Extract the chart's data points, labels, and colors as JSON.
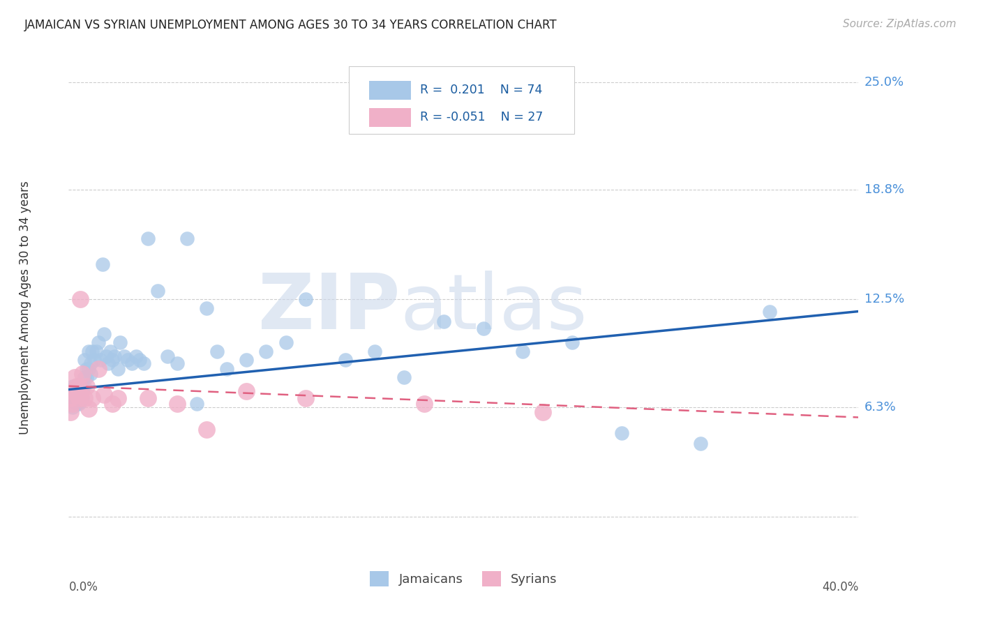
{
  "title": "JAMAICAN VS SYRIAN UNEMPLOYMENT AMONG AGES 30 TO 34 YEARS CORRELATION CHART",
  "source": "Source: ZipAtlas.com",
  "ylabel": "Unemployment Among Ages 30 to 34 years",
  "xlim": [
    0.0,
    0.4
  ],
  "ylim": [
    -0.025,
    0.265
  ],
  "yticks": [
    0.0,
    0.063,
    0.125,
    0.188,
    0.25
  ],
  "ytick_labels": [
    "",
    "6.3%",
    "12.5%",
    "18.8%",
    "25.0%"
  ],
  "background_color": "#ffffff",
  "grid_color": "#cccccc",
  "jamaican_color": "#a8c8e8",
  "syrian_color": "#f0b0c8",
  "jamaican_line_color": "#2060b0",
  "syrian_line_color": "#e06080",
  "watermark_zip": "ZIP",
  "watermark_atlas": "atlas",
  "jamaican_x": [
    0.001,
    0.001,
    0.002,
    0.002,
    0.002,
    0.003,
    0.003,
    0.003,
    0.004,
    0.004,
    0.004,
    0.004,
    0.005,
    0.005,
    0.005,
    0.005,
    0.006,
    0.006,
    0.006,
    0.007,
    0.007,
    0.007,
    0.008,
    0.008,
    0.008,
    0.009,
    0.009,
    0.01,
    0.01,
    0.011,
    0.011,
    0.012,
    0.013,
    0.014,
    0.015,
    0.016,
    0.017,
    0.018,
    0.019,
    0.02,
    0.021,
    0.022,
    0.023,
    0.025,
    0.026,
    0.028,
    0.03,
    0.032,
    0.034,
    0.036,
    0.038,
    0.04,
    0.045,
    0.05,
    0.055,
    0.06,
    0.065,
    0.07,
    0.075,
    0.08,
    0.09,
    0.1,
    0.11,
    0.12,
    0.14,
    0.155,
    0.17,
    0.19,
    0.21,
    0.23,
    0.255,
    0.28,
    0.32,
    0.355
  ],
  "jamaican_y": [
    0.073,
    0.065,
    0.07,
    0.063,
    0.075,
    0.068,
    0.072,
    0.066,
    0.068,
    0.075,
    0.065,
    0.07,
    0.068,
    0.072,
    0.065,
    0.07,
    0.072,
    0.068,
    0.066,
    0.075,
    0.068,
    0.073,
    0.08,
    0.075,
    0.09,
    0.085,
    0.08,
    0.085,
    0.095,
    0.088,
    0.082,
    0.095,
    0.09,
    0.095,
    0.1,
    0.09,
    0.145,
    0.105,
    0.092,
    0.088,
    0.095,
    0.09,
    0.092,
    0.085,
    0.1,
    0.092,
    0.09,
    0.088,
    0.092,
    0.09,
    0.088,
    0.16,
    0.13,
    0.092,
    0.088,
    0.16,
    0.065,
    0.12,
    0.095,
    0.085,
    0.09,
    0.095,
    0.1,
    0.125,
    0.09,
    0.095,
    0.08,
    0.112,
    0.108,
    0.095,
    0.1,
    0.048,
    0.042,
    0.118
  ],
  "syrian_x": [
    0.001,
    0.001,
    0.002,
    0.002,
    0.003,
    0.003,
    0.004,
    0.005,
    0.005,
    0.006,
    0.006,
    0.007,
    0.008,
    0.009,
    0.01,
    0.012,
    0.015,
    0.018,
    0.022,
    0.025,
    0.04,
    0.055,
    0.07,
    0.09,
    0.12,
    0.18,
    0.24
  ],
  "syrian_y": [
    0.068,
    0.06,
    0.072,
    0.065,
    0.08,
    0.072,
    0.075,
    0.068,
    0.075,
    0.07,
    0.125,
    0.082,
    0.068,
    0.075,
    0.062,
    0.068,
    0.085,
    0.07,
    0.065,
    0.068,
    0.068,
    0.065,
    0.05,
    0.072,
    0.068,
    0.065,
    0.06
  ],
  "jamaican_trend_x": [
    0.0,
    0.4
  ],
  "jamaican_trend_y": [
    0.073,
    0.118
  ],
  "syrian_trend_x": [
    0.0,
    0.4
  ],
  "syrian_trend_y": [
    0.075,
    0.057
  ]
}
